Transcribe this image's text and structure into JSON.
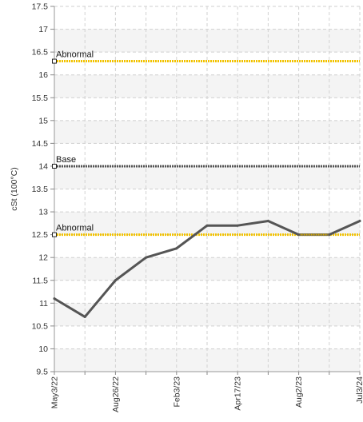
{
  "chart_data": {
    "type": "line",
    "ylabel": "cSt (100°C)",
    "xlabel": "",
    "ylim": [
      9.5,
      17.5
    ],
    "ytick_step": 0.5,
    "x_tick_labels": [
      "May3/22",
      "Aug26/22",
      "Feb3/23",
      "Apr17/23",
      "Aug2/23",
      "Jul3/24"
    ],
    "x_tick_indices": [
      0,
      2,
      4,
      6,
      8,
      10
    ],
    "grid": true,
    "series": [
      {
        "values": [
          11.1,
          10.7,
          11.5,
          12.0,
          12.2,
          12.7,
          12.7,
          12.8,
          12.5,
          12.5,
          12.8
        ],
        "color": "#555555"
      }
    ],
    "segment_highlight": {
      "from_index": 8,
      "to_index": 9,
      "color": "#d4a800"
    },
    "reference_lines": [
      {
        "label": "Abnormal",
        "value": 16.3,
        "color": "#f2c200"
      },
      {
        "label": "Base",
        "value": 14.0,
        "color": "#555555"
      },
      {
        "label": "Abnormal",
        "value": 12.5,
        "color": "#f2c200"
      }
    ]
  }
}
